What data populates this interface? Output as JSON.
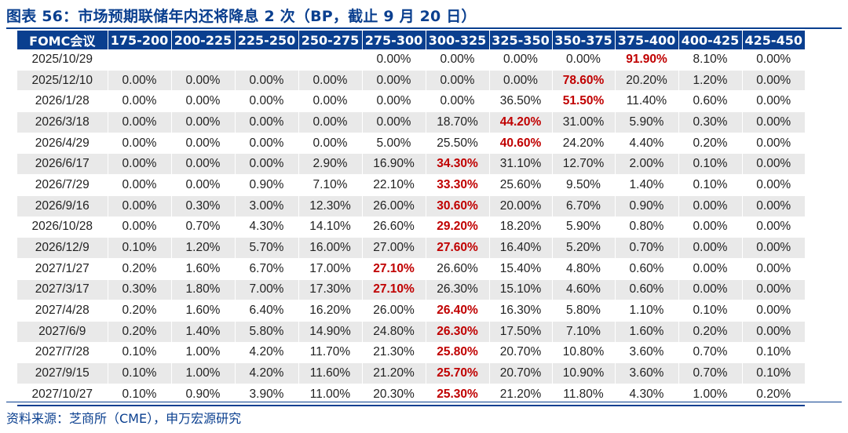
{
  "title": "图表 56：市场预期联储年内还将降息 2 次（BP，截止 9 月 20 日）",
  "source": "资料来源：芝商所（CME），申万宏源研究",
  "colors": {
    "header_bg": "#0a3f8f",
    "highlight": "#c00000",
    "stripe": "#e9e9e9"
  },
  "chart_data": {
    "type": "table",
    "columns": [
      "FOMC会议",
      "175-200",
      "200-225",
      "225-250",
      "250-275",
      "275-300",
      "300-325",
      "325-350",
      "350-375",
      "375-400",
      "400-425",
      "425-450"
    ],
    "rows": [
      {
        "date": "2025/10/29",
        "values": [
          "",
          "",
          "",
          "",
          "0.00%",
          "0.00%",
          "0.00%",
          "0.00%",
          "91.90%",
          "8.10%",
          "0.00%"
        ],
        "max_index": 8
      },
      {
        "date": "2025/12/10",
        "values": [
          "0.00%",
          "0.00%",
          "0.00%",
          "0.00%",
          "0.00%",
          "0.00%",
          "0.00%",
          "78.60%",
          "20.20%",
          "1.20%",
          "0.00%"
        ],
        "max_index": 7
      },
      {
        "date": "2026/1/28",
        "values": [
          "0.00%",
          "0.00%",
          "0.00%",
          "0.00%",
          "0.00%",
          "0.00%",
          "36.50%",
          "51.50%",
          "11.40%",
          "0.60%",
          "0.00%"
        ],
        "max_index": 7
      },
      {
        "date": "2026/3/18",
        "values": [
          "0.00%",
          "0.00%",
          "0.00%",
          "0.00%",
          "0.00%",
          "18.70%",
          "44.20%",
          "31.00%",
          "5.90%",
          "0.30%",
          "0.00%"
        ],
        "max_index": 6
      },
      {
        "date": "2026/4/29",
        "values": [
          "0.00%",
          "0.00%",
          "0.00%",
          "0.00%",
          "5.00%",
          "25.50%",
          "40.60%",
          "24.20%",
          "4.40%",
          "0.20%",
          "0.00%"
        ],
        "max_index": 6
      },
      {
        "date": "2026/6/17",
        "values": [
          "0.00%",
          "0.00%",
          "0.00%",
          "2.90%",
          "16.90%",
          "34.30%",
          "31.10%",
          "12.70%",
          "2.00%",
          "0.10%",
          "0.00%"
        ],
        "max_index": 5
      },
      {
        "date": "2026/7/29",
        "values": [
          "0.00%",
          "0.00%",
          "0.90%",
          "7.10%",
          "22.10%",
          "33.30%",
          "25.60%",
          "9.50%",
          "1.40%",
          "0.10%",
          "0.00%"
        ],
        "max_index": 5
      },
      {
        "date": "2026/9/16",
        "values": [
          "0.00%",
          "0.30%",
          "3.00%",
          "12.30%",
          "26.00%",
          "30.60%",
          "20.00%",
          "6.70%",
          "0.90%",
          "0.00%",
          "0.00%"
        ],
        "max_index": 5
      },
      {
        "date": "2026/10/28",
        "values": [
          "0.00%",
          "0.70%",
          "4.30%",
          "14.10%",
          "26.60%",
          "29.20%",
          "18.20%",
          "5.90%",
          "0.80%",
          "0.00%",
          "0.00%"
        ],
        "max_index": 5
      },
      {
        "date": "2026/12/9",
        "values": [
          "0.10%",
          "1.20%",
          "5.70%",
          "16.00%",
          "27.00%",
          "27.60%",
          "16.40%",
          "5.20%",
          "0.70%",
          "0.00%",
          "0.00%"
        ],
        "max_index": 5
      },
      {
        "date": "2027/1/27",
        "values": [
          "0.20%",
          "1.60%",
          "6.70%",
          "17.00%",
          "27.10%",
          "26.60%",
          "15.40%",
          "4.80%",
          "0.60%",
          "0.00%",
          "0.00%"
        ],
        "max_index": 4
      },
      {
        "date": "2027/3/17",
        "values": [
          "0.30%",
          "1.80%",
          "7.00%",
          "17.30%",
          "27.10%",
          "26.30%",
          "15.10%",
          "4.60%",
          "0.60%",
          "0.00%",
          "0.00%"
        ],
        "max_index": 4
      },
      {
        "date": "2027/4/28",
        "values": [
          "0.20%",
          "1.60%",
          "6.40%",
          "16.20%",
          "26.00%",
          "26.40%",
          "16.30%",
          "5.80%",
          "1.10%",
          "0.10%",
          "0.00%"
        ],
        "max_index": 5
      },
      {
        "date": "2027/6/9",
        "values": [
          "0.20%",
          "1.40%",
          "5.80%",
          "14.90%",
          "24.80%",
          "26.30%",
          "17.50%",
          "7.10%",
          "1.60%",
          "0.20%",
          "0.00%"
        ],
        "max_index": 5
      },
      {
        "date": "2027/7/28",
        "values": [
          "0.10%",
          "1.00%",
          "4.20%",
          "11.70%",
          "21.30%",
          "25.80%",
          "20.70%",
          "10.80%",
          "3.60%",
          "0.70%",
          "0.10%"
        ],
        "max_index": 5
      },
      {
        "date": "2027/9/15",
        "values": [
          "0.10%",
          "1.00%",
          "4.20%",
          "11.60%",
          "21.20%",
          "25.70%",
          "20.70%",
          "10.90%",
          "3.60%",
          "0.70%",
          "0.10%"
        ],
        "max_index": 5
      },
      {
        "date": "2027/10/27",
        "values": [
          "0.10%",
          "0.90%",
          "3.90%",
          "11.00%",
          "20.30%",
          "25.30%",
          "21.20%",
          "11.80%",
          "4.30%",
          "1.00%",
          "0.20%"
        ],
        "max_index": 5
      }
    ]
  }
}
